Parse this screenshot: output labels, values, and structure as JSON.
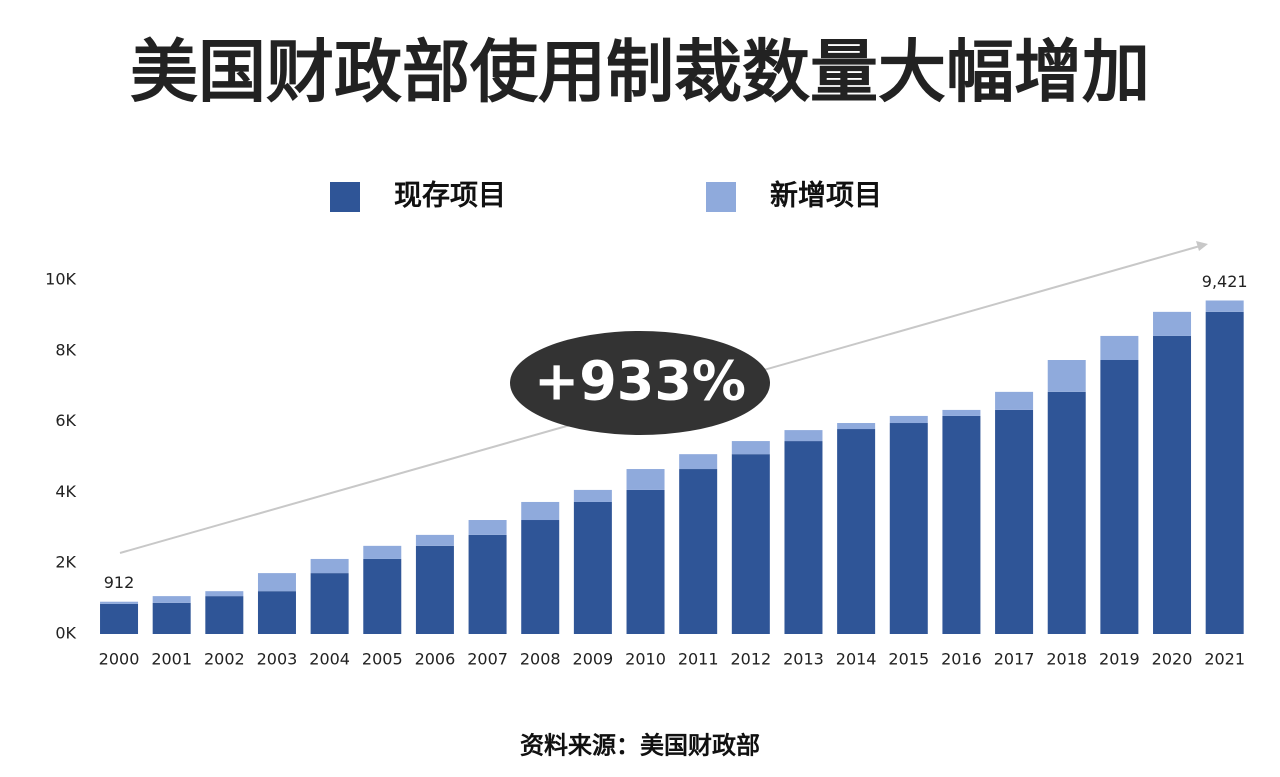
{
  "chart_data": {
    "type": "stacked_bar",
    "title": "美国财政部使用制裁数量大幅增加",
    "categories": [
      "2000",
      "2001",
      "2002",
      "2003",
      "2004",
      "2005",
      "2006",
      "2007",
      "2008",
      "2009",
      "2010",
      "2011",
      "2012",
      "2013",
      "2014",
      "2015",
      "2016",
      "2017",
      "2018",
      "2019",
      "2020",
      "2021"
    ],
    "series": [
      {
        "name": "现存项目",
        "color": "#2f5597",
        "values": [
          850,
          880,
          1070,
          1210,
          1720,
          2120,
          2490,
          2800,
          3220,
          3730,
          4070,
          4660,
          5080,
          5450,
          5790,
          5960,
          6160,
          6330,
          6840,
          7740,
          8420,
          9100
        ]
      },
      {
        "name": "新增项目",
        "color": "#8faadc",
        "values": [
          62,
          190,
          140,
          510,
          400,
          370,
          310,
          420,
          510,
          340,
          590,
          420,
          370,
          310,
          170,
          200,
          170,
          510,
          900,
          680,
          680,
          321
        ]
      }
    ],
    "total_labels": [
      {
        "category": "2000",
        "value": 912,
        "label": "912"
      },
      {
        "category": "2021",
        "value": 9421,
        "label": "9,421"
      }
    ],
    "ylim": [
      0,
      10000
    ],
    "yticks": [
      {
        "value": 0,
        "label": "0K"
      },
      {
        "value": 2000,
        "label": "2K"
      },
      {
        "value": 4000,
        "label": "4K"
      },
      {
        "value": 6000,
        "label": "6K"
      },
      {
        "value": 8000,
        "label": "8K"
      },
      {
        "value": 10000,
        "label": "10K"
      }
    ],
    "grid": false,
    "annotation": "+933%",
    "source": "资料来源：美国财政部"
  }
}
